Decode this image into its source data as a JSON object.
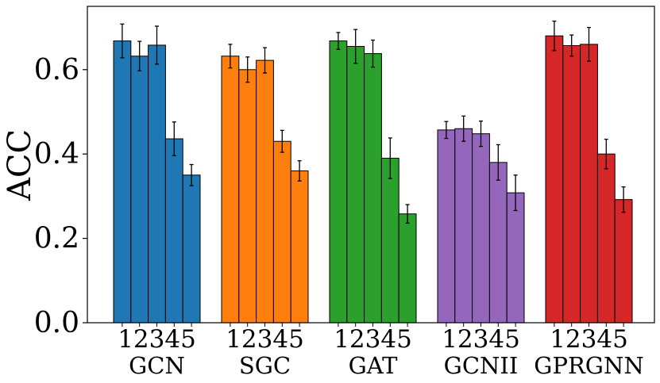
{
  "chart_data": {
    "type": "bar",
    "ylabel": "ACC",
    "xlabel": "",
    "ylim": [
      0,
      0.75
    ],
    "yticks": [
      0.0,
      0.2,
      0.4,
      0.6
    ],
    "ytick_labels": [
      "0.0",
      "0.2",
      "0.4",
      "0.6"
    ],
    "categories": [
      "1",
      "2",
      "3",
      "4",
      "5"
    ],
    "groups": [
      {
        "name": "GCN",
        "color": "#1f77b4",
        "values": [
          0.668,
          0.632,
          0.658,
          0.436,
          0.35
        ],
        "errors": [
          0.04,
          0.035,
          0.045,
          0.04,
          0.025
        ]
      },
      {
        "name": "SGC",
        "color": "#ff7f0e",
        "values": [
          0.632,
          0.6,
          0.622,
          0.43,
          0.36
        ],
        "errors": [
          0.028,
          0.03,
          0.03,
          0.026,
          0.024
        ]
      },
      {
        "name": "GAT",
        "color": "#2ca02c",
        "values": [
          0.668,
          0.655,
          0.638,
          0.39,
          0.258
        ],
        "errors": [
          0.02,
          0.04,
          0.032,
          0.048,
          0.022
        ]
      },
      {
        "name": "GCNII",
        "color": "#9467bd",
        "values": [
          0.457,
          0.46,
          0.448,
          0.38,
          0.308
        ],
        "errors": [
          0.02,
          0.03,
          0.03,
          0.042,
          0.042
        ]
      },
      {
        "name": "GPRGNN",
        "color": "#d62728",
        "values": [
          0.68,
          0.657,
          0.66,
          0.4,
          0.292
        ],
        "errors": [
          0.035,
          0.025,
          0.04,
          0.035,
          0.03
        ]
      }
    ]
  }
}
